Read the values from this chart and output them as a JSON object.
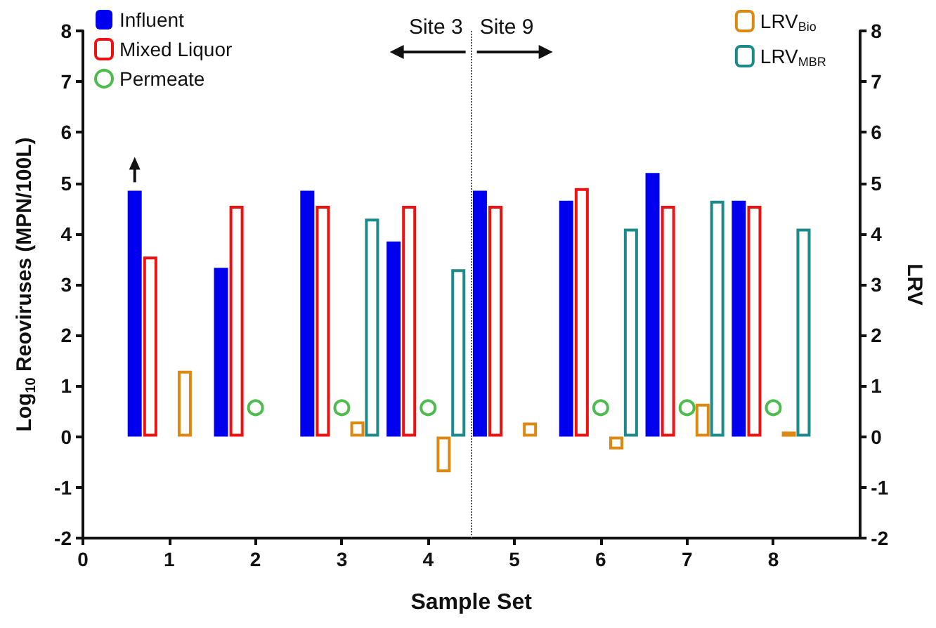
{
  "chart_data": {
    "type": "bar",
    "xlabel": "Sample Set",
    "ylabel": "Log$_{10}$ Reoviruses (MPN/100L)",
    "y2label": "LRV",
    "xlim": [
      0,
      9
    ],
    "xticks": [
      0,
      1,
      2,
      3,
      4,
      5,
      6,
      7,
      8
    ],
    "ylim": [
      -2,
      8
    ],
    "yticks": [
      -2,
      -1,
      0,
      1,
      2,
      3,
      4,
      5,
      6,
      7,
      8
    ],
    "y2lim": [
      -2,
      8
    ],
    "y2ticks": [
      -2,
      -1,
      0,
      1,
      2,
      3,
      4,
      5,
      6,
      7,
      8
    ],
    "legend": "top",
    "grid": false,
    "series": [
      {
        "name": "Influent",
        "color": "#0000ee",
        "x": [
          0.6,
          1.6,
          2.6,
          3.6,
          4.6,
          5.6,
          6.6,
          7.6
        ],
        "values": [
          4.85,
          3.33,
          4.85,
          3.85,
          4.85,
          4.65,
          5.2,
          4.65
        ]
      },
      {
        "name": "Mixed Liquor",
        "color": "#ee1111",
        "x": [
          0.78,
          1.78,
          2.78,
          3.78,
          4.78,
          5.78,
          6.78,
          7.78
        ],
        "values": [
          3.55,
          4.55,
          4.55,
          4.55,
          4.55,
          4.9,
          4.55,
          4.55
        ]
      },
      {
        "name": "Permeate",
        "type": "scatter",
        "color": "#22aa22",
        "x": [
          2,
          3,
          4,
          6,
          7,
          8
        ],
        "values": [
          0.57,
          0.57,
          0.57,
          0.57,
          0.57,
          0.57
        ]
      },
      {
        "name": "LRV$_{Bio}$",
        "axis": "y2",
        "color": "#dd8811",
        "x": [
          1.18,
          3.18,
          4.18,
          5.18,
          6.18,
          7.18,
          8.18
        ],
        "values": [
          1.3,
          0.3,
          -0.7,
          0.28,
          -0.25,
          0.65,
          0.1
        ]
      },
      {
        "name": "LRV$_{MBR}$",
        "axis": "y2",
        "color": "#1a8a8a",
        "x": [
          3.35,
          4.35,
          6.35,
          7.35,
          8.35
        ],
        "values": [
          4.3,
          3.3,
          4.1,
          4.65,
          4.1
        ]
      }
    ],
    "ref_lines": [
      {
        "axis": "x",
        "value": 4.5,
        "color": "#555555",
        "line_style": "dotted"
      }
    ],
    "annotations": [
      "Site 3",
      "Site 9"
    ]
  }
}
